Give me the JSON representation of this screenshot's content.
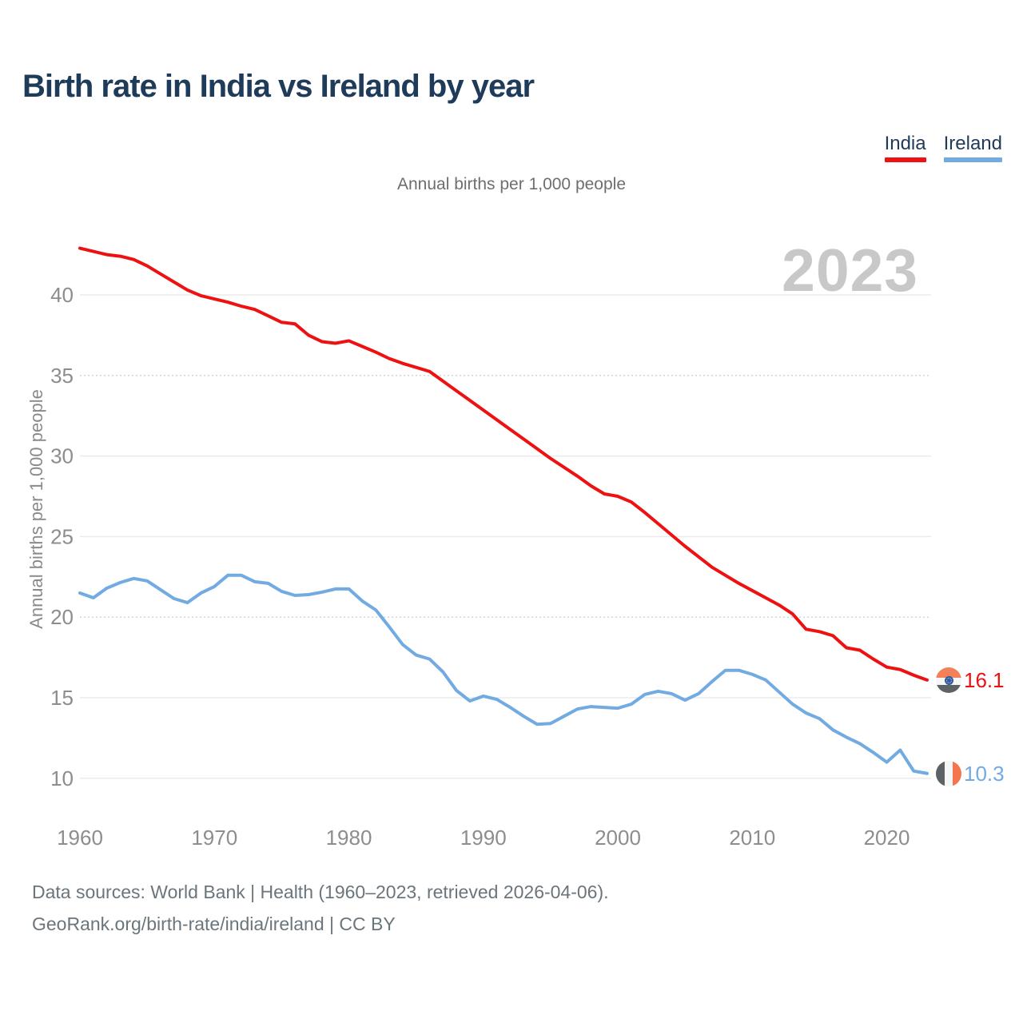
{
  "header": {
    "title": "Birth rate in India vs Ireland by year",
    "subtitle": "Annual births per 1,000 people",
    "watermark_year": "2023"
  },
  "chart_data": {
    "type": "line",
    "title": "Birth rate in India vs Ireland by year",
    "unit_label": "Annual births per 1,000 people",
    "ylabel": "Annual births per 1,000 people",
    "xlabel": "",
    "x_start": 1960,
    "x_end": 2023,
    "x_step": 1,
    "x_ticks": [
      1960,
      1970,
      1980,
      1990,
      2000,
      2010,
      2020
    ],
    "y_ticks": [
      10,
      15,
      20,
      25,
      30,
      35,
      40
    ],
    "ylim": [
      8.8,
      43.6
    ],
    "grid": "horizontal",
    "legend_position": "top-right",
    "series": [
      {
        "name": "India",
        "color": "#EE1111",
        "end_label": "16.1",
        "flag_icon": "india-flag-icon",
        "values": [
          42.9,
          42.7,
          42.5,
          42.4,
          42.2,
          41.8,
          41.3,
          40.8,
          40.3,
          39.95,
          39.75,
          39.55,
          39.3,
          39.1,
          38.7,
          38.3,
          38.2,
          37.5,
          37.1,
          37.0,
          37.15,
          36.8,
          36.45,
          36.05,
          35.75,
          35.5,
          35.25,
          34.65,
          34.05,
          33.45,
          32.85,
          32.25,
          31.65,
          31.05,
          30.45,
          29.85,
          29.3,
          28.75,
          28.15,
          27.65,
          27.5,
          27.15,
          26.5,
          25.8,
          25.1,
          24.4,
          23.75,
          23.1,
          22.6,
          22.1,
          21.65,
          21.2,
          20.75,
          20.2,
          19.25,
          19.1,
          18.85,
          18.1,
          17.95,
          17.4,
          16.9,
          16.75,
          16.4,
          16.1
        ]
      },
      {
        "name": "Ireland",
        "color": "#72AAE2",
        "end_label": "10.3",
        "flag_icon": "ireland-flag-icon",
        "values": [
          21.5,
          21.2,
          21.8,
          22.15,
          22.4,
          22.25,
          21.7,
          21.15,
          20.9,
          21.5,
          21.9,
          22.6,
          22.6,
          22.2,
          22.1,
          21.6,
          21.35,
          21.4,
          21.55,
          21.75,
          21.75,
          21.0,
          20.45,
          19.4,
          18.3,
          17.65,
          17.4,
          16.6,
          15.45,
          14.8,
          15.1,
          14.9,
          14.4,
          13.85,
          13.35,
          13.4,
          13.85,
          14.3,
          14.45,
          14.4,
          14.35,
          14.6,
          15.2,
          15.4,
          15.25,
          14.85,
          15.25,
          16.0,
          16.7,
          16.7,
          16.45,
          16.1,
          15.35,
          14.6,
          14.05,
          13.7,
          13.0,
          12.55,
          12.15,
          11.6,
          11.0,
          11.75,
          10.45,
          10.3
        ]
      }
    ]
  },
  "icons": {
    "india_flag": {
      "bands": [
        "#F2815A",
        "#F6F6F6",
        "#5C6266"
      ],
      "chakra": "#33589C"
    },
    "ireland_flag": {
      "bands": [
        "#5C6266",
        "#F6F6F6",
        "#F4764E"
      ]
    }
  },
  "footer": {
    "line1": "Data sources: World Bank | Health (1960–2023, retrieved 2026-04-06).",
    "line2": "GeoRank.org/birth-rate/india/ireland | CC BY"
  }
}
